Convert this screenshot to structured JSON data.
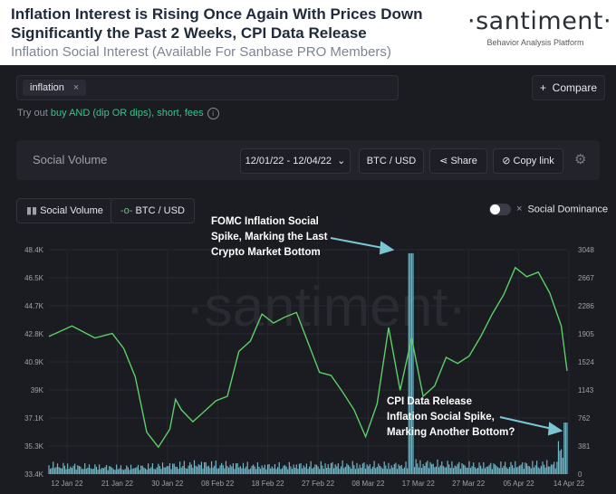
{
  "header": {
    "title_line1": "Inflation Interest is Rising Once Again With Prices Down",
    "title_line2": "Significantly the Past 2 Weeks, CPI Data Release",
    "subtitle": "Inflation Social Interest (Available For Sanbase PRO Members)",
    "logo": "·santiment·",
    "logo_tagline": "Behavior Analysis Platform"
  },
  "search": {
    "tag": "inflation",
    "remove": "×"
  },
  "compare_label": "Compare",
  "hint": {
    "prefix": "Try out ",
    "query": "buy AND (dip OR dips), short, fees",
    "info": "i"
  },
  "toolbar": {
    "title": "Social Volume",
    "date_range": "12/01/22 - 12/04/22",
    "pair": "BTC / USD",
    "share": "Share",
    "copy_link": "Copy link"
  },
  "legend": {
    "social_volume": "Social Volume",
    "btc_usd": "BTC / USD",
    "dominance": "Social Dominance"
  },
  "colors": {
    "price": "#5bd066",
    "volume": "#70b8c8",
    "bg": "#1b1b22",
    "accent": "#36c58a"
  },
  "watermark": "·santiment·",
  "annotations": {
    "fomc": [
      "FOMC Inflation Social",
      "Spike, Marking the Last",
      "Crypto Market Bottom"
    ],
    "cpi": [
      "CPI Data Release",
      "Inflation Social Spike,",
      "Marking Another Bottom?"
    ]
  },
  "chart_data": {
    "type": "line",
    "x_ticks": [
      "12 Jan 22",
      "21 Jan 22",
      "30 Jan 22",
      "08 Feb 22",
      "18 Feb 22",
      "27 Feb 22",
      "08 Mar 22",
      "17 Mar 22",
      "27 Mar 22",
      "05 Apr 22",
      "14 Apr 22"
    ],
    "y_left_ticks": [
      "48.4K",
      "46.5K",
      "44.7K",
      "42.8K",
      "40.9K",
      "39K",
      "37.1K",
      "35.3K",
      "33.4K"
    ],
    "y_right_ticks": [
      "3048",
      "2667",
      "2286",
      "1905",
      "1524",
      "1143",
      "762",
      "381",
      "0"
    ],
    "ylim_price": [
      33400,
      48400
    ],
    "ylim_volume": [
      0,
      3048
    ],
    "series": [
      {
        "name": "BTC / USD",
        "x": [
          0,
          4,
          8,
          11,
          13,
          15,
          17,
          19,
          21,
          22,
          23,
          25,
          27,
          29,
          31,
          33,
          35,
          37,
          39,
          41,
          43,
          45,
          47,
          49,
          51,
          53,
          55,
          57,
          59,
          61,
          63,
          65,
          67,
          69,
          71,
          73,
          75,
          77,
          79,
          81,
          83,
          85,
          87,
          89,
          90
        ],
        "values": [
          42600,
          43300,
          42500,
          42800,
          41800,
          39900,
          36200,
          35200,
          36400,
          38400,
          37700,
          36900,
          37600,
          38300,
          38600,
          41600,
          42300,
          44100,
          43500,
          43900,
          44200,
          42200,
          40200,
          40000,
          38900,
          37700,
          35900,
          38100,
          43200,
          39000,
          42500,
          38600,
          39300,
          41200,
          40800,
          41300,
          42600,
          44100,
          45400,
          47200,
          46600,
          46900,
          45500,
          43300,
          40300
        ]
      },
      {
        "name": "Social Volume",
        "x": [
          0,
          13,
          26,
          38,
          50,
          62,
          63,
          64,
          75,
          88,
          89,
          90
        ],
        "values": [
          120,
          90,
          140,
          110,
          130,
          120,
          3000,
          150,
          120,
          140,
          400,
          700
        ]
      }
    ]
  }
}
